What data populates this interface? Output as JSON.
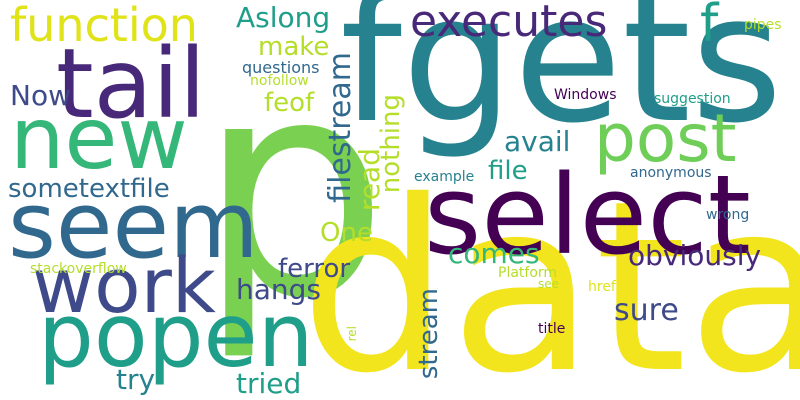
{
  "words": {
    "fgets": "fgets",
    "p": "p",
    "data": "data",
    "select": "select",
    "tail": "tail",
    "popen": "popen",
    "new": "new",
    "seem": "seem",
    "work": "work",
    "post": "post",
    "function": "function",
    "executes": "executes",
    "f": "f",
    "Aslong": "Aslong",
    "make": "make",
    "pipes": "pipes",
    "questions": "questions",
    "nofollow": "nofollow",
    "Now": "Now",
    "feof": "feof",
    "Windows": "Windows",
    "suggestion": "suggestion",
    "filestream": "filestream",
    "read": "read",
    "nothing": "nothing",
    "avail": "avail",
    "sometextfile": "sometextfile",
    "file": "file",
    "example": "example",
    "anonymous": "anonymous",
    "One": "One",
    "comes": "comes",
    "obviously": "obviously",
    "wrong": "wrong",
    "ferror": "ferror",
    "stackoverflow": "stackoverflow",
    "Platform": "Platform",
    "href": "href",
    "hangs": "hangs",
    "see": "see",
    "sure": "sure",
    "stream": "stream",
    "rel": "rel",
    "title": "title",
    "try": "try",
    "tried": "tried"
  },
  "colors": {
    "purple_dark": "#440154",
    "purple": "#482878",
    "indigo": "#3e4a89",
    "blue": "#31688e",
    "teal": "#26828e",
    "teal_green": "#1f9e89",
    "green": "#35b779",
    "light_green": "#6ece58",
    "lime": "#b5de2b",
    "yellow": "#fde725"
  }
}
